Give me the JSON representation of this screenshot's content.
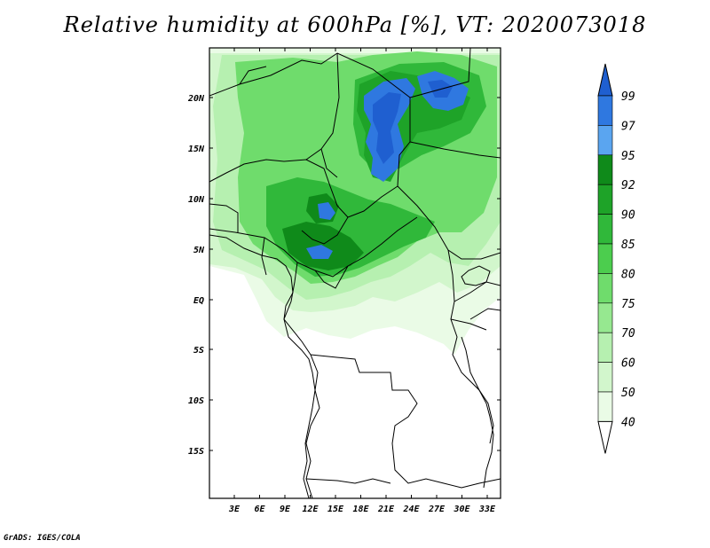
{
  "title": "Relative humidity at 600hPa [%], VT: 2020073018",
  "credit": "GrADS: IGES/COLA",
  "latitude_labels": [
    "20N",
    "15N",
    "10N",
    "5N",
    "EQ",
    "5S",
    "10S",
    "15S"
  ],
  "longitude_labels": [
    "3E",
    "6E",
    "9E",
    "12E",
    "15E",
    "18E",
    "21E",
    "24E",
    "27E",
    "30E",
    "33E"
  ],
  "colorbar": {
    "levels": [
      "99",
      "97",
      "95",
      "92",
      "90",
      "85",
      "80",
      "75",
      "70",
      "60",
      "50",
      "40"
    ],
    "colors": [
      "#1f5fd0",
      "#2f78e0",
      "#5aa5f0",
      "#0f8a1a",
      "#1ea328",
      "#30b83a",
      "#4ccd4e",
      "#6fdc6c",
      "#96e890",
      "#b6f0b0",
      "#d2f6cc",
      "#eafbe6"
    ]
  }
}
